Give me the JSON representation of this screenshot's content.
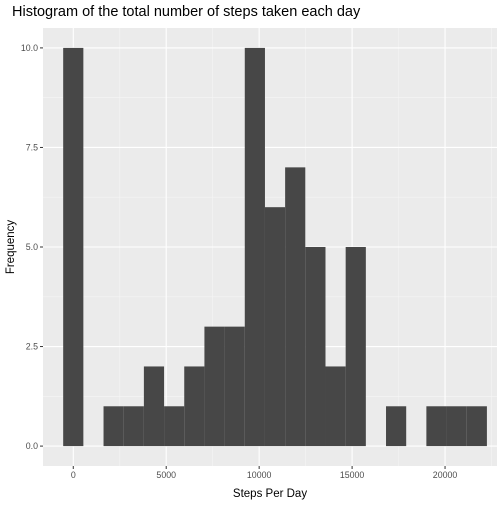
{
  "chart_data": {
    "type": "bar",
    "title": "Histogram of the total number of steps taken each day",
    "xlabel": "Steps Per Day",
    "ylabel": "Frequency",
    "binwidth": 1085.47,
    "x": [
      0,
      1085.47,
      2170.94,
      3256.41,
      4341.88,
      5427.35,
      6512.82,
      7598.29,
      8683.76,
      9769.24,
      10854.71,
      11940.18,
      13025.65,
      14111.12,
      15196.59,
      16282.06,
      17367.53,
      18453.0,
      19538.47,
      20623.94,
      21709.41
    ],
    "values": [
      10,
      0,
      1,
      1,
      2,
      1,
      2,
      3,
      3,
      10,
      6,
      7,
      5,
      2,
      5,
      0,
      1,
      0,
      1,
      1,
      1
    ],
    "xlim": [
      -1628.2,
      22794.9
    ],
    "ylim": [
      -0.5,
      10.5
    ],
    "x_ticks": [
      0,
      5000,
      10000,
      15000,
      20000
    ],
    "x_tick_labels": [
      "0",
      "5000",
      "10000",
      "15000",
      "20000"
    ],
    "y_ticks": [
      0,
      2.5,
      5,
      7.5,
      10
    ],
    "y_tick_labels": [
      "0.0",
      "2.5",
      "5.0",
      "7.5",
      "10.0"
    ],
    "grid": true,
    "colors": {
      "bar": "#474747",
      "panel": "#ebebeb",
      "grid_major": "#ffffff",
      "grid_minor": "#f5f5f5"
    }
  }
}
